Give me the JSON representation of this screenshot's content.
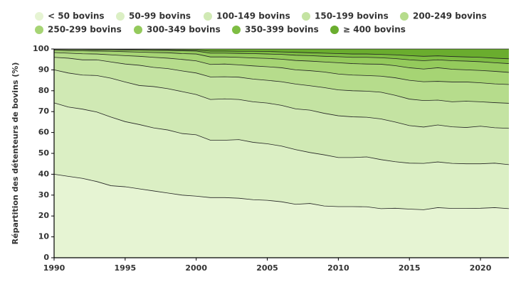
{
  "chart_data": {
    "type": "stacked_area",
    "y_label": "Répartition des détenteurs de bovins (%)",
    "x": [
      1990,
      1991,
      1992,
      1993,
      1994,
      1995,
      1996,
      1997,
      1998,
      1999,
      2000,
      2001,
      2002,
      2003,
      2004,
      2005,
      2006,
      2007,
      2008,
      2009,
      2010,
      2011,
      2012,
      2013,
      2014,
      2015,
      2016,
      2017,
      2018,
      2019,
      2020,
      2021,
      2022
    ],
    "xlim": [
      1990,
      2022
    ],
    "xticks": [
      1990,
      1995,
      2000,
      2005,
      2010,
      2015,
      2020
    ],
    "ylim": [
      0,
      100
    ],
    "yticks": [
      0,
      10,
      20,
      30,
      40,
      50,
      60,
      70,
      80,
      90,
      100
    ],
    "legend_position": "top",
    "series": [
      {
        "name": "< 50 bovins",
        "color": "#e6f4d3",
        "values": [
          40,
          39,
          38,
          36.5,
          34.5,
          34,
          33,
          32,
          31,
          30,
          29.5,
          28.8,
          28.8,
          28.5,
          27.8,
          27.5,
          26.8,
          25.6,
          26,
          24.8,
          24.5,
          24.5,
          24.4,
          23.5,
          23.7,
          23.3,
          23,
          24,
          23.6,
          23.6,
          23.7,
          24,
          23.5
        ]
      },
      {
        "name": "50-99 bovins",
        "color": "#dbefc4",
        "values": [
          34.2,
          33.2,
          33.2,
          33.3,
          32.9,
          31.2,
          30.8,
          30.2,
          30.2,
          29.5,
          29.4,
          27.5,
          27.5,
          28.1,
          27.5,
          27.1,
          26.7,
          26.2,
          24.4,
          24.5,
          23.5,
          23.5,
          23.9,
          23.5,
          22.3,
          22,
          22.2,
          21.9,
          21.6,
          21.4,
          21.3,
          21.3,
          21.1
        ]
      },
      {
        "name": "100-149 bovins",
        "color": "#d0e9b4",
        "values": [
          15.8,
          16.3,
          16.3,
          17.5,
          18.6,
          19,
          18.7,
          19.8,
          19.8,
          20.1,
          19.3,
          19.5,
          19.8,
          19.2,
          19.4,
          19.5,
          19.5,
          19.5,
          20.3,
          19.9,
          20,
          19.5,
          19,
          19.5,
          19,
          18,
          17.4,
          17.7,
          17.5,
          17.4,
          18,
          17,
          17.4
        ]
      },
      {
        "name": "150-199 bovins",
        "color": "#c4e3a2",
        "values": [
          6,
          7.1,
          7.3,
          7.5,
          7.8,
          8.6,
          9.7,
          9.2,
          9.6,
          9.9,
          10.3,
          10.8,
          10.6,
          10.7,
          10.9,
          10.9,
          11.3,
          11.9,
          11.7,
          12.3,
          12.4,
          12.5,
          12.5,
          12.8,
          12.8,
          12.7,
          12.7,
          11.9,
          12,
          12.6,
          11.7,
          12,
          12
        ]
      },
      {
        "name": "200-249 bovins",
        "color": "#b6dc8c",
        "values": [
          2.3,
          2.4,
          2.9,
          2.8,
          3.4,
          4,
          4.3,
          4.8,
          5,
          5.5,
          5.8,
          6,
          6.1,
          5.9,
          6.3,
          6.5,
          6.7,
          6.8,
          7.2,
          7.5,
          7.6,
          7.5,
          7.5,
          7.7,
          8.4,
          9,
          9,
          9,
          9.5,
          9.2,
          9.1,
          9,
          9
        ]
      },
      {
        "name": "250-299 bovins",
        "color": "#a6d474",
        "values": [
          1.1,
          1.2,
          1.4,
          1.4,
          1.7,
          1.9,
          2,
          2.3,
          2.6,
          2.8,
          3.3,
          3.6,
          3.4,
          3.6,
          3.8,
          4,
          4.1,
          4.5,
          4.6,
          4.8,
          5.4,
          5.5,
          5.5,
          5.7,
          5.8,
          6,
          6.1,
          6.5,
          6.1,
          5.8,
          5.9,
          6,
          5.8
        ]
      },
      {
        "name": "300-349 bovins",
        "color": "#94ca5c",
        "values": [
          0.4,
          0.5,
          0.6,
          0.6,
          0.7,
          0.8,
          0.9,
          1,
          1.1,
          1.3,
          1.4,
          1.8,
          1.8,
          1.9,
          2.1,
          2.1,
          2.3,
          2.5,
          2.6,
          2.7,
          2.9,
          3,
          3.2,
          3.1,
          3.4,
          3.8,
          4,
          3.8,
          4.1,
          4.2,
          4.2,
          4.1,
          4.2
        ]
      },
      {
        "name": "350-399 bovins",
        "color": "#7ebd43",
        "values": [
          0.15,
          0.2,
          0.2,
          0.3,
          0.3,
          0.3,
          0.4,
          0.5,
          0.4,
          0.5,
          0.5,
          1,
          1,
          1,
          1.1,
          1.2,
          1.2,
          1.4,
          1.4,
          1.5,
          1.5,
          1.6,
          1.6,
          1.6,
          1.8,
          2,
          2.1,
          1.9,
          2,
          2,
          2.1,
          2.2,
          2.3
        ]
      },
      {
        "name": "≥ 400 bovins",
        "color": "#6aad2e",
        "values": [
          0.05,
          0.1,
          0.1,
          0.1,
          0.1,
          0.2,
          0.2,
          0.2,
          0.3,
          0.4,
          0.5,
          1,
          1,
          1.1,
          1.1,
          1.2,
          1.4,
          1.6,
          1.8,
          2,
          2.2,
          2.4,
          2.4,
          2.6,
          2.8,
          3.2,
          3.5,
          3.3,
          3.6,
          3.8,
          4,
          4.4,
          4.7
        ]
      }
    ]
  }
}
